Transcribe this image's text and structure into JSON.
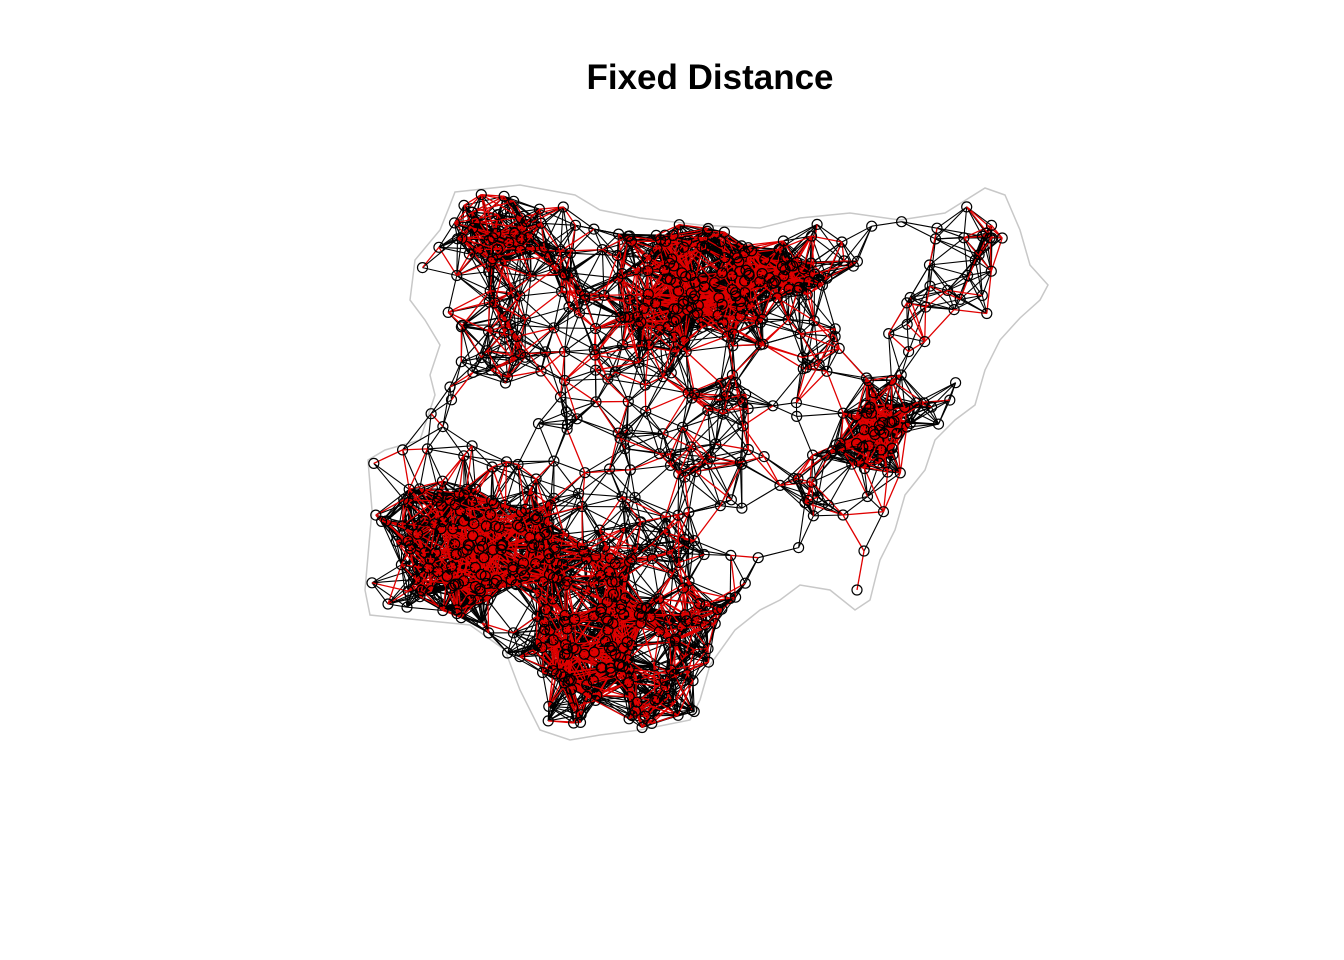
{
  "title": "Fixed Distance",
  "map": {
    "type": "neighbour-network",
    "colors": {
      "background": "#ffffff",
      "boundary": "#c8c8c8",
      "edge_primary": "#000000",
      "edge_secondary": "#e00000",
      "node": "#000000"
    },
    "legend": "none",
    "axes": "none"
  }
}
